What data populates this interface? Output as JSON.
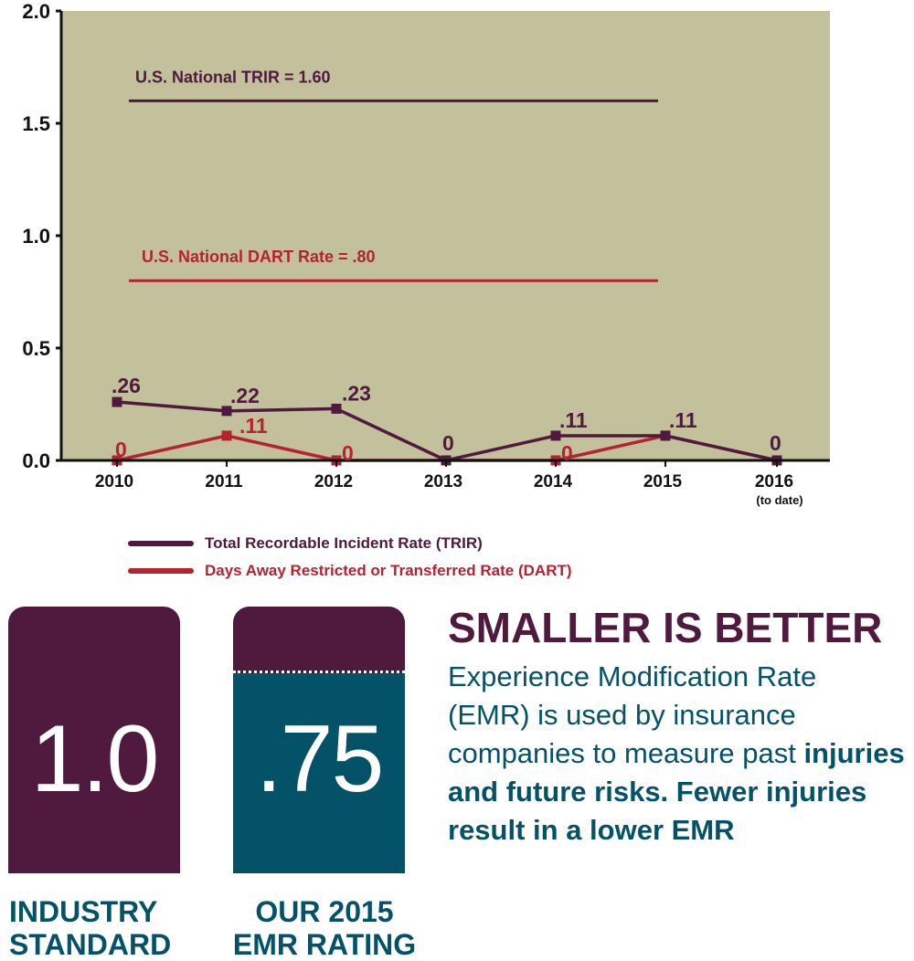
{
  "chart_data": {
    "type": "line",
    "categories": [
      "2010",
      "2011",
      "2012",
      "2013",
      "2014",
      "2015",
      "2016"
    ],
    "category_notes": [
      "",
      "",
      "",
      "",
      "",
      "",
      "(to date)"
    ],
    "ylim": [
      0,
      2.0
    ],
    "yticks": [
      "0.0",
      "0.5",
      "1.0",
      "1.5",
      "2.0"
    ],
    "series": [
      {
        "name": "Total Recordable Incident Rate (TRIR)",
        "color": "#4f1a3e",
        "values": [
          0.26,
          0.22,
          0.23,
          0,
          0.11,
          0.11,
          0
        ],
        "labels": [
          ".26",
          ".22",
          ".23",
          "0",
          ".11",
          ".11",
          "0"
        ]
      },
      {
        "name": "Days Away Restricted or Transferred Rate (DART)",
        "color": "#b32330",
        "values": [
          0,
          0.11,
          0,
          0,
          0,
          0.11,
          0
        ],
        "labels": [
          "0",
          ".11",
          "0",
          "",
          "0",
          "",
          ""
        ]
      }
    ],
    "reference_lines": [
      {
        "label": "U.S. National TRIR = 1.60",
        "value": 1.6,
        "color": "#4f1a3e"
      },
      {
        "label": "U.S. National DART Rate = .80",
        "value": 0.8,
        "color": "#b32330"
      }
    ],
    "plot_background": "#c2c19c",
    "grid": false,
    "legend_position": "bottom"
  },
  "emr": {
    "headline": "SMALLER IS BETTER",
    "body_light": "Experience Modification Rate (EMR) is used by insurance companies to measure past",
    "body_bold": "injuries and future risks. Fewer injuries result in a lower EMR",
    "industry": {
      "value": "1.0",
      "caption": "INDUSTRY STANDARD",
      "color": "#4f1a3e"
    },
    "ours": {
      "value": ".75",
      "caption": "OUR 2015 EMR RATING",
      "color": "#045268",
      "level": 0.75
    }
  }
}
